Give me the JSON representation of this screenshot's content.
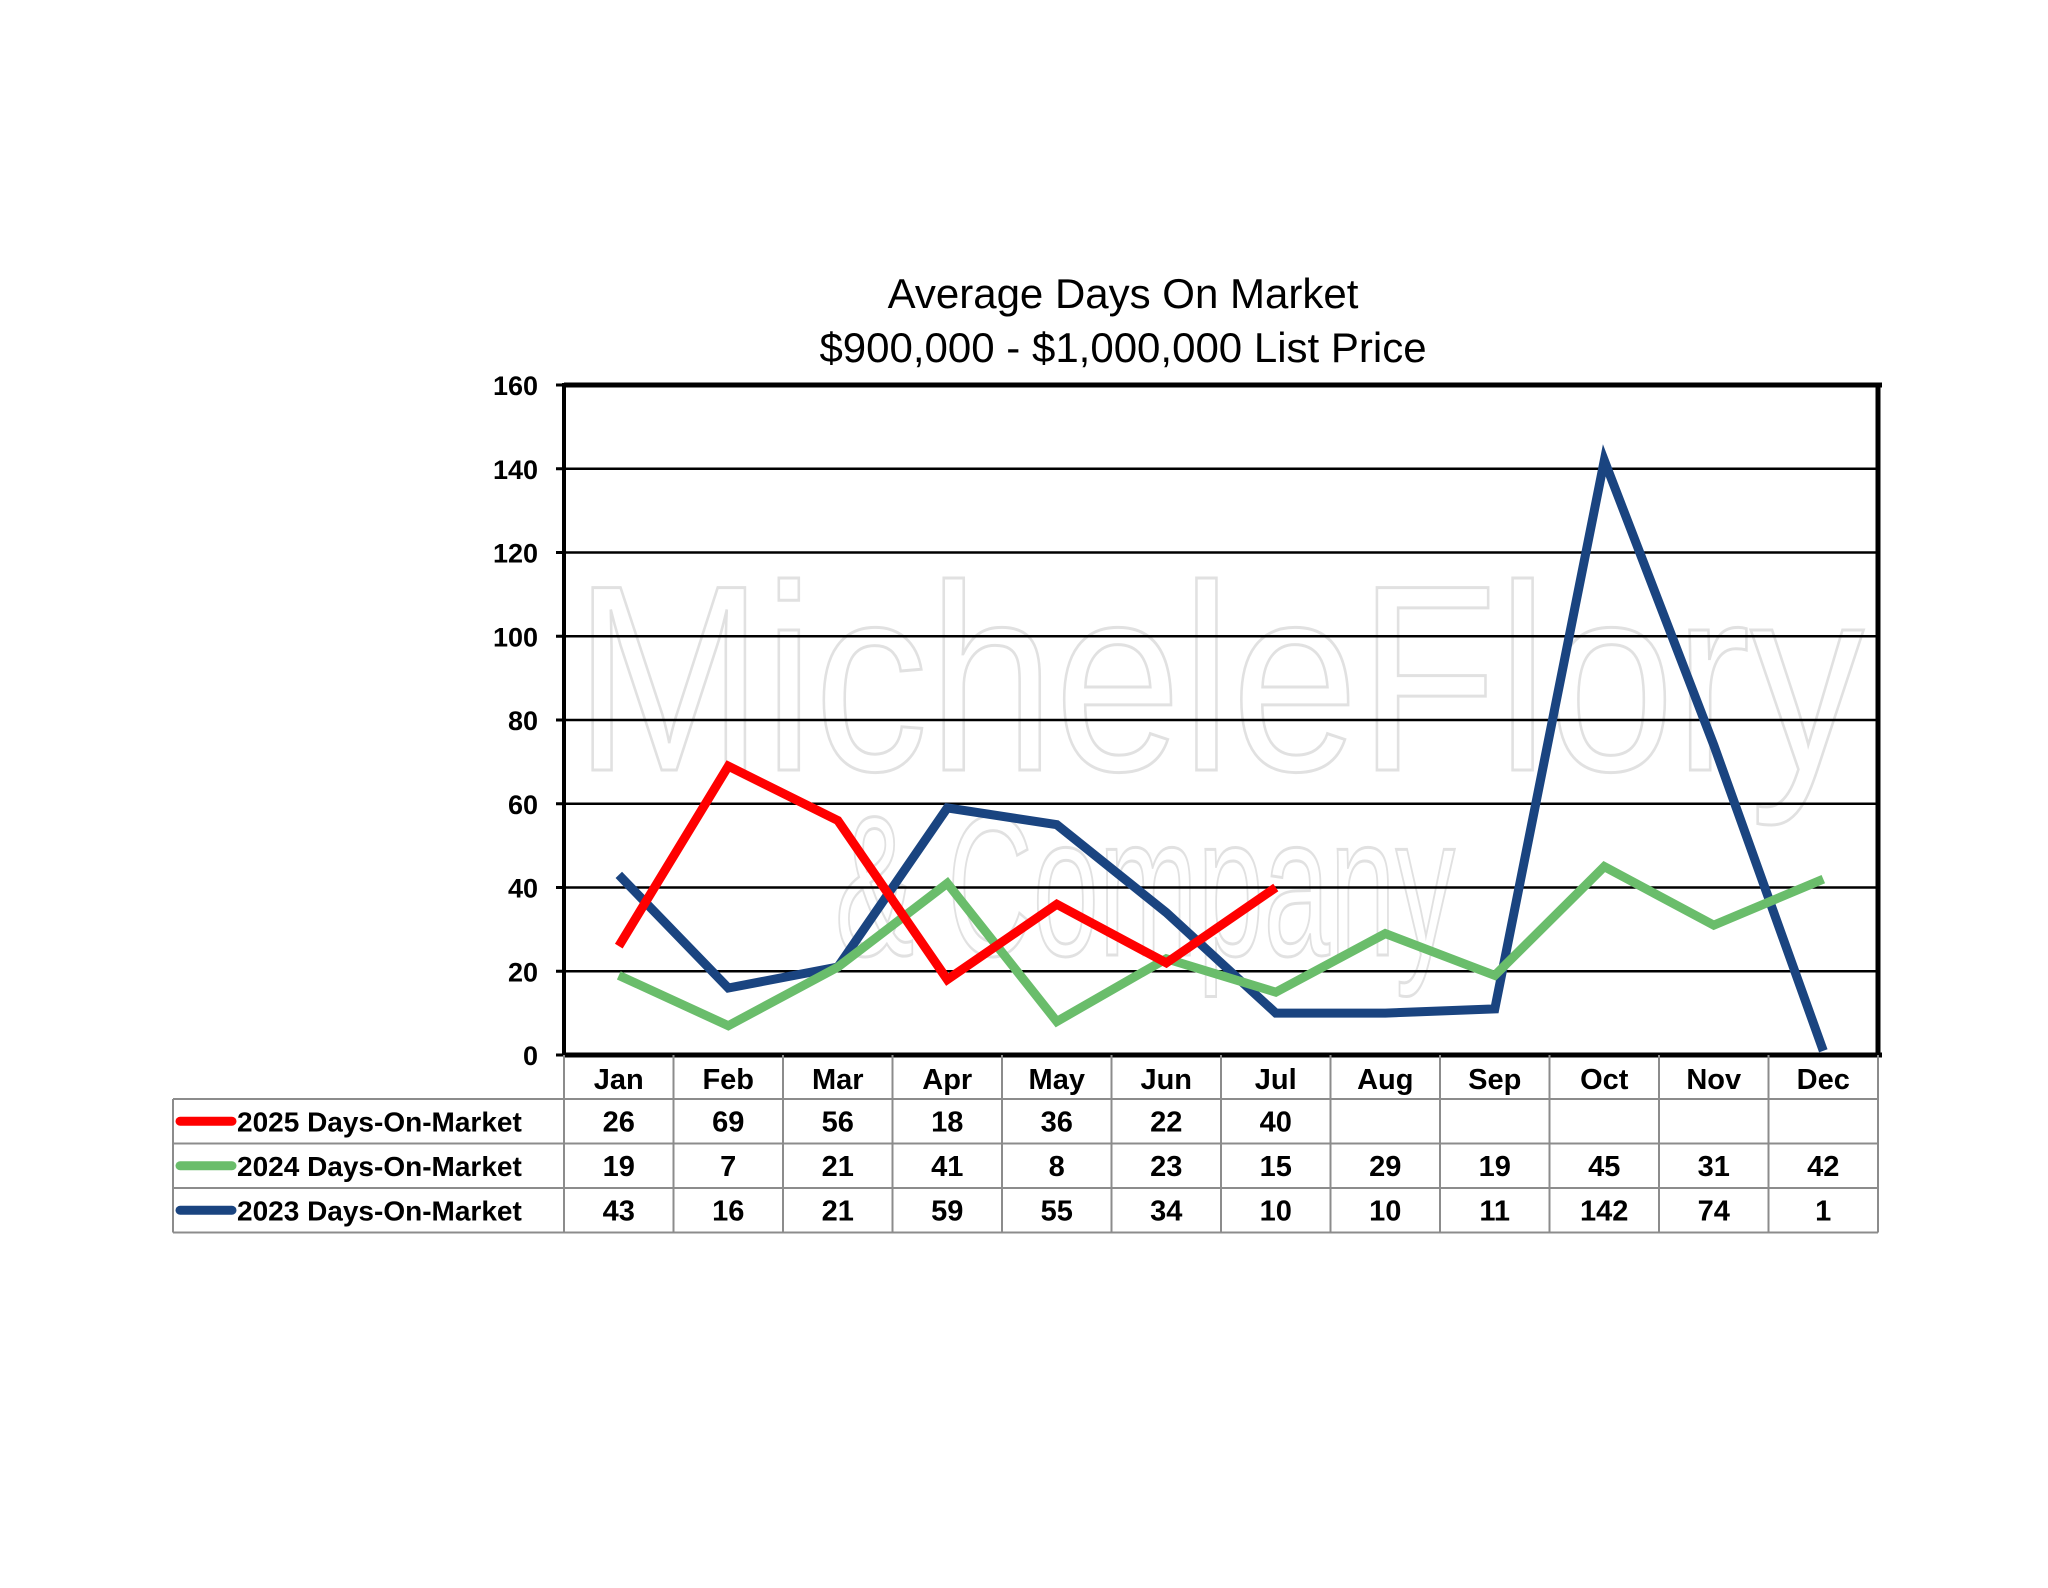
{
  "chart_data": {
    "type": "line",
    "title": "Average Days On Market",
    "subtitle": "$900,000 - $1,000,000 List Price",
    "categories": [
      "Jan",
      "Feb",
      "Mar",
      "Apr",
      "May",
      "Jun",
      "Jul",
      "Aug",
      "Sep",
      "Oct",
      "Nov",
      "Dec"
    ],
    "ylim": [
      0,
      160
    ],
    "yticks": [
      0,
      20,
      40,
      60,
      80,
      100,
      120,
      140,
      160
    ],
    "grid": true,
    "legend_placement": "data-table-left",
    "series": [
      {
        "name": "2025 Days-On-Market",
        "color": "#ff0000",
        "values": [
          26,
          69,
          56,
          18,
          36,
          22,
          40,
          null,
          null,
          null,
          null,
          null
        ]
      },
      {
        "name": "2024 Days-On-Market",
        "color": "#6abd6b",
        "values": [
          19,
          7,
          21,
          41,
          8,
          23,
          15,
          29,
          19,
          45,
          31,
          42
        ]
      },
      {
        "name": "2023 Days-On-Market",
        "color": "#1a4480",
        "values": [
          43,
          16,
          21,
          59,
          55,
          34,
          10,
          10,
          11,
          142,
          74,
          1
        ]
      }
    ],
    "watermark": {
      "line1": "MicheleFlory",
      "line2": "& Company"
    }
  }
}
